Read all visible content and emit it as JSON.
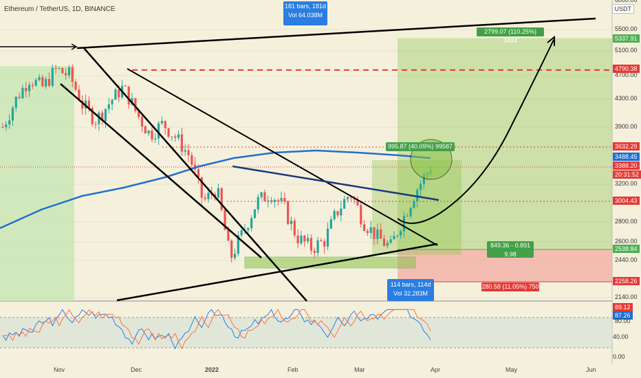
{
  "header": {
    "title": "Ethereum / TetherUS, 1D, BINANCE",
    "unit_button": "USDT"
  },
  "price_axis": {
    "labels": [
      "5500.00",
      "5100.00",
      "4700.00",
      "4300.00",
      "3900.00",
      "3200.00",
      "2800.00",
      "2600.00",
      "2440.00",
      "2140.00"
    ],
    "top_partial": "6000.00"
  },
  "price_tags": [
    {
      "label": "5337.91",
      "color": "#4caf50"
    },
    {
      "label": "4790.38",
      "color": "#e53935"
    },
    {
      "label": "3632.29",
      "color": "#e53935"
    },
    {
      "label": "3488.45",
      "color": "#1e6fcf"
    },
    {
      "label": "3388.20",
      "color": "#e53935"
    },
    {
      "label": "20:31:52",
      "color": "#e53935"
    },
    {
      "label": "3004.43",
      "color": "#e53935"
    },
    {
      "label": "2538.84",
      "color": "#4caf50"
    },
    {
      "label": "2258.26",
      "color": "#e53935"
    }
  ],
  "rsi_axis": {
    "labels": [
      "89.12",
      "87.26",
      "40.00",
      "0.00"
    ],
    "partial": "80.00"
  },
  "time_axis": [
    "Nov",
    "Dec",
    "2022",
    "Feb",
    "Mar",
    "Apr",
    "May",
    "Jun"
  ],
  "annotations": {
    "top_range": {
      "line1": "181 bars, 181d",
      "line2": "Vol 64.038M"
    },
    "bottom_range": {
      "line1": "114 bars, 114d",
      "line2": "Vol 32.283M"
    },
    "target": "2799.07 (110.25%) 3494",
    "zone": "995.87 (40.09%) 99587",
    "risk_reward": {
      "line1": "849.36 - 0.891",
      "line2": "9.98"
    },
    "stop": "280.58 (11.05%) 750"
  },
  "colors": {
    "background": "#f5f0dc",
    "up": "#26a69a",
    "down": "#ef5350",
    "ma": "#1e6fcf",
    "profit": "#4caf50",
    "loss": "#e53935"
  },
  "chart_data": {
    "type": "candlestick",
    "symbol": "ETHUSDT",
    "timeframe": "1D",
    "ylim": [
      2080,
      6000
    ],
    "moving_average": "blue curve rising from about 2400 to about 3488",
    "levels": [
      5337.91,
      4790.38,
      3632.29,
      3488.45,
      3388.2,
      3004.43,
      2538.84,
      2258.26
    ],
    "series": [
      {
        "name": "price path (approx closes)",
        "values": [
          3900,
          4300,
          4650,
          4500,
          4800,
          4700,
          4200,
          4000,
          4250,
          4500,
          4100,
          3800,
          3950,
          3750,
          3500,
          3000,
          3150,
          2450,
          2700,
          3000,
          3100,
          2950,
          2650,
          2550,
          2600,
          2900,
          3100,
          2800,
          2650,
          2550,
          2850,
          3150,
          3388.2
        ]
      }
    ],
    "rsi": {
      "name": "Stoch RSI",
      "k": 89.12,
      "d": 87.26,
      "levels": [
        80,
        20
      ]
    }
  }
}
